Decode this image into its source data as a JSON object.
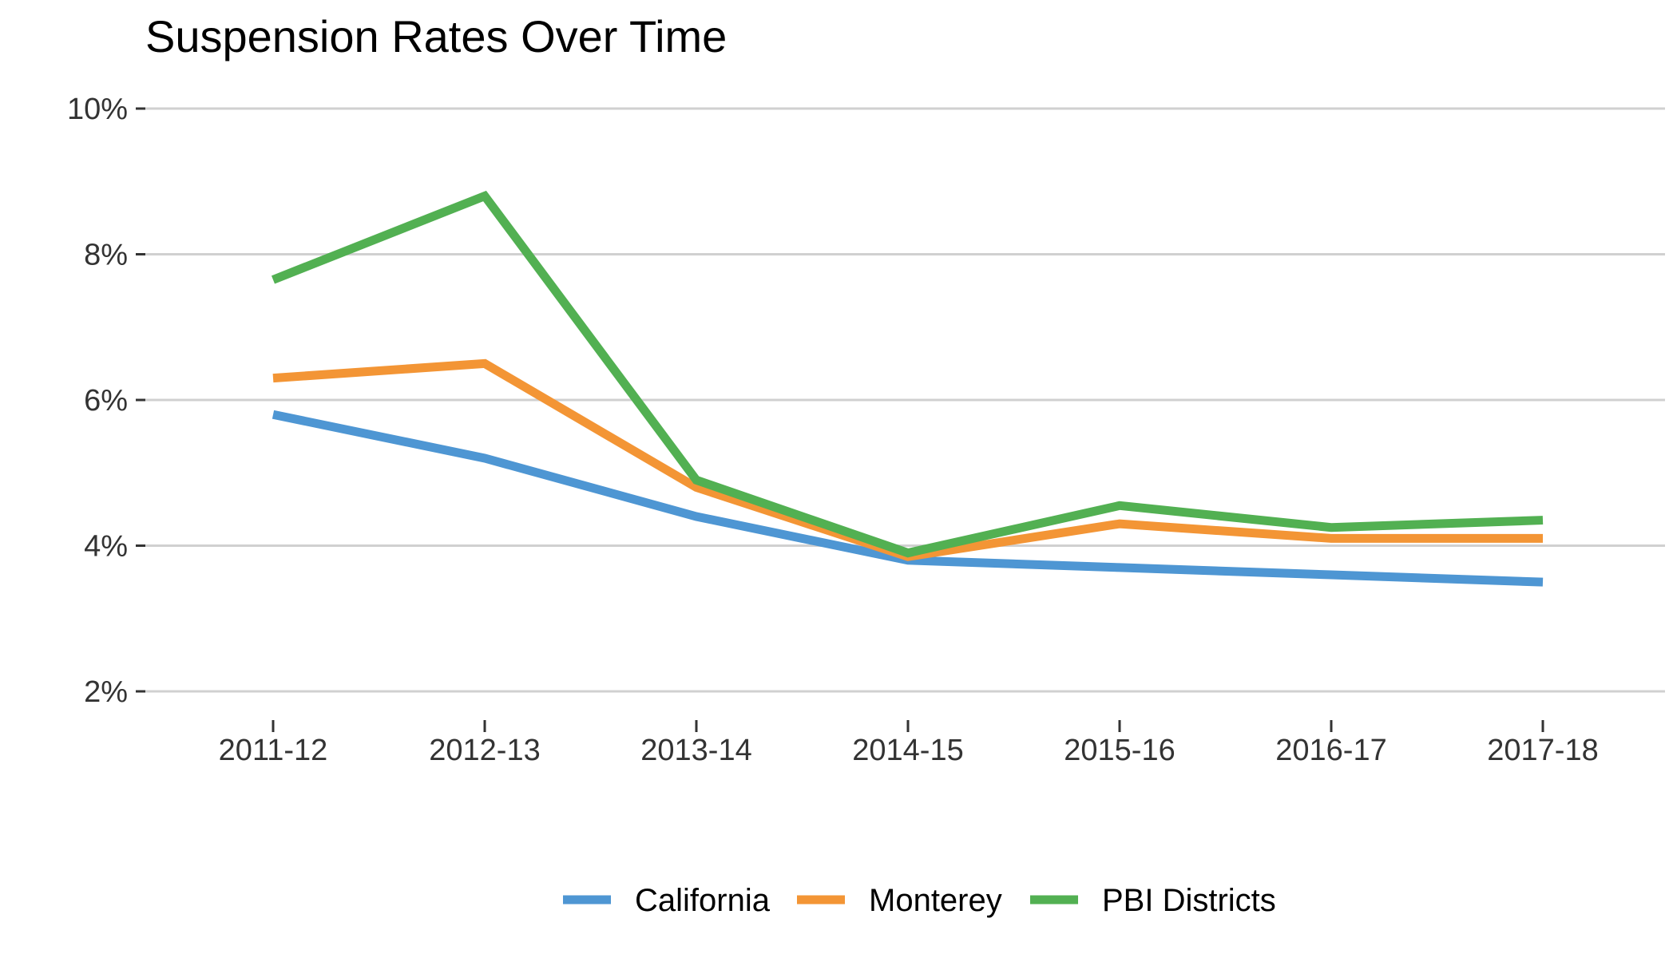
{
  "chart_data": {
    "type": "line",
    "title": "Suspension Rates Over Time",
    "xlabel": "",
    "ylabel": "",
    "categories": [
      "2011-12",
      "2012-13",
      "2013-14",
      "2014-15",
      "2015-16",
      "2016-17",
      "2017-18"
    ],
    "y_ticks": [
      2,
      4,
      6,
      8,
      10
    ],
    "y_tick_labels": [
      "2%",
      "4%",
      "6%",
      "8%",
      "10%"
    ],
    "ylim": [
      2,
      10
    ],
    "grid": "horizontal",
    "legend_position": "bottom",
    "series": [
      {
        "name": "California",
        "color": "#4E96D3",
        "values": [
          5.8,
          5.2,
          4.4,
          3.8,
          3.7,
          3.6,
          3.5
        ]
      },
      {
        "name": "Monterey",
        "color": "#F39535",
        "values": [
          6.3,
          6.5,
          4.8,
          3.85,
          4.3,
          4.1,
          4.1
        ]
      },
      {
        "name": "PBI Districts",
        "color": "#52B052",
        "values": [
          7.65,
          8.8,
          4.9,
          3.9,
          4.55,
          4.25,
          4.35
        ]
      }
    ]
  }
}
